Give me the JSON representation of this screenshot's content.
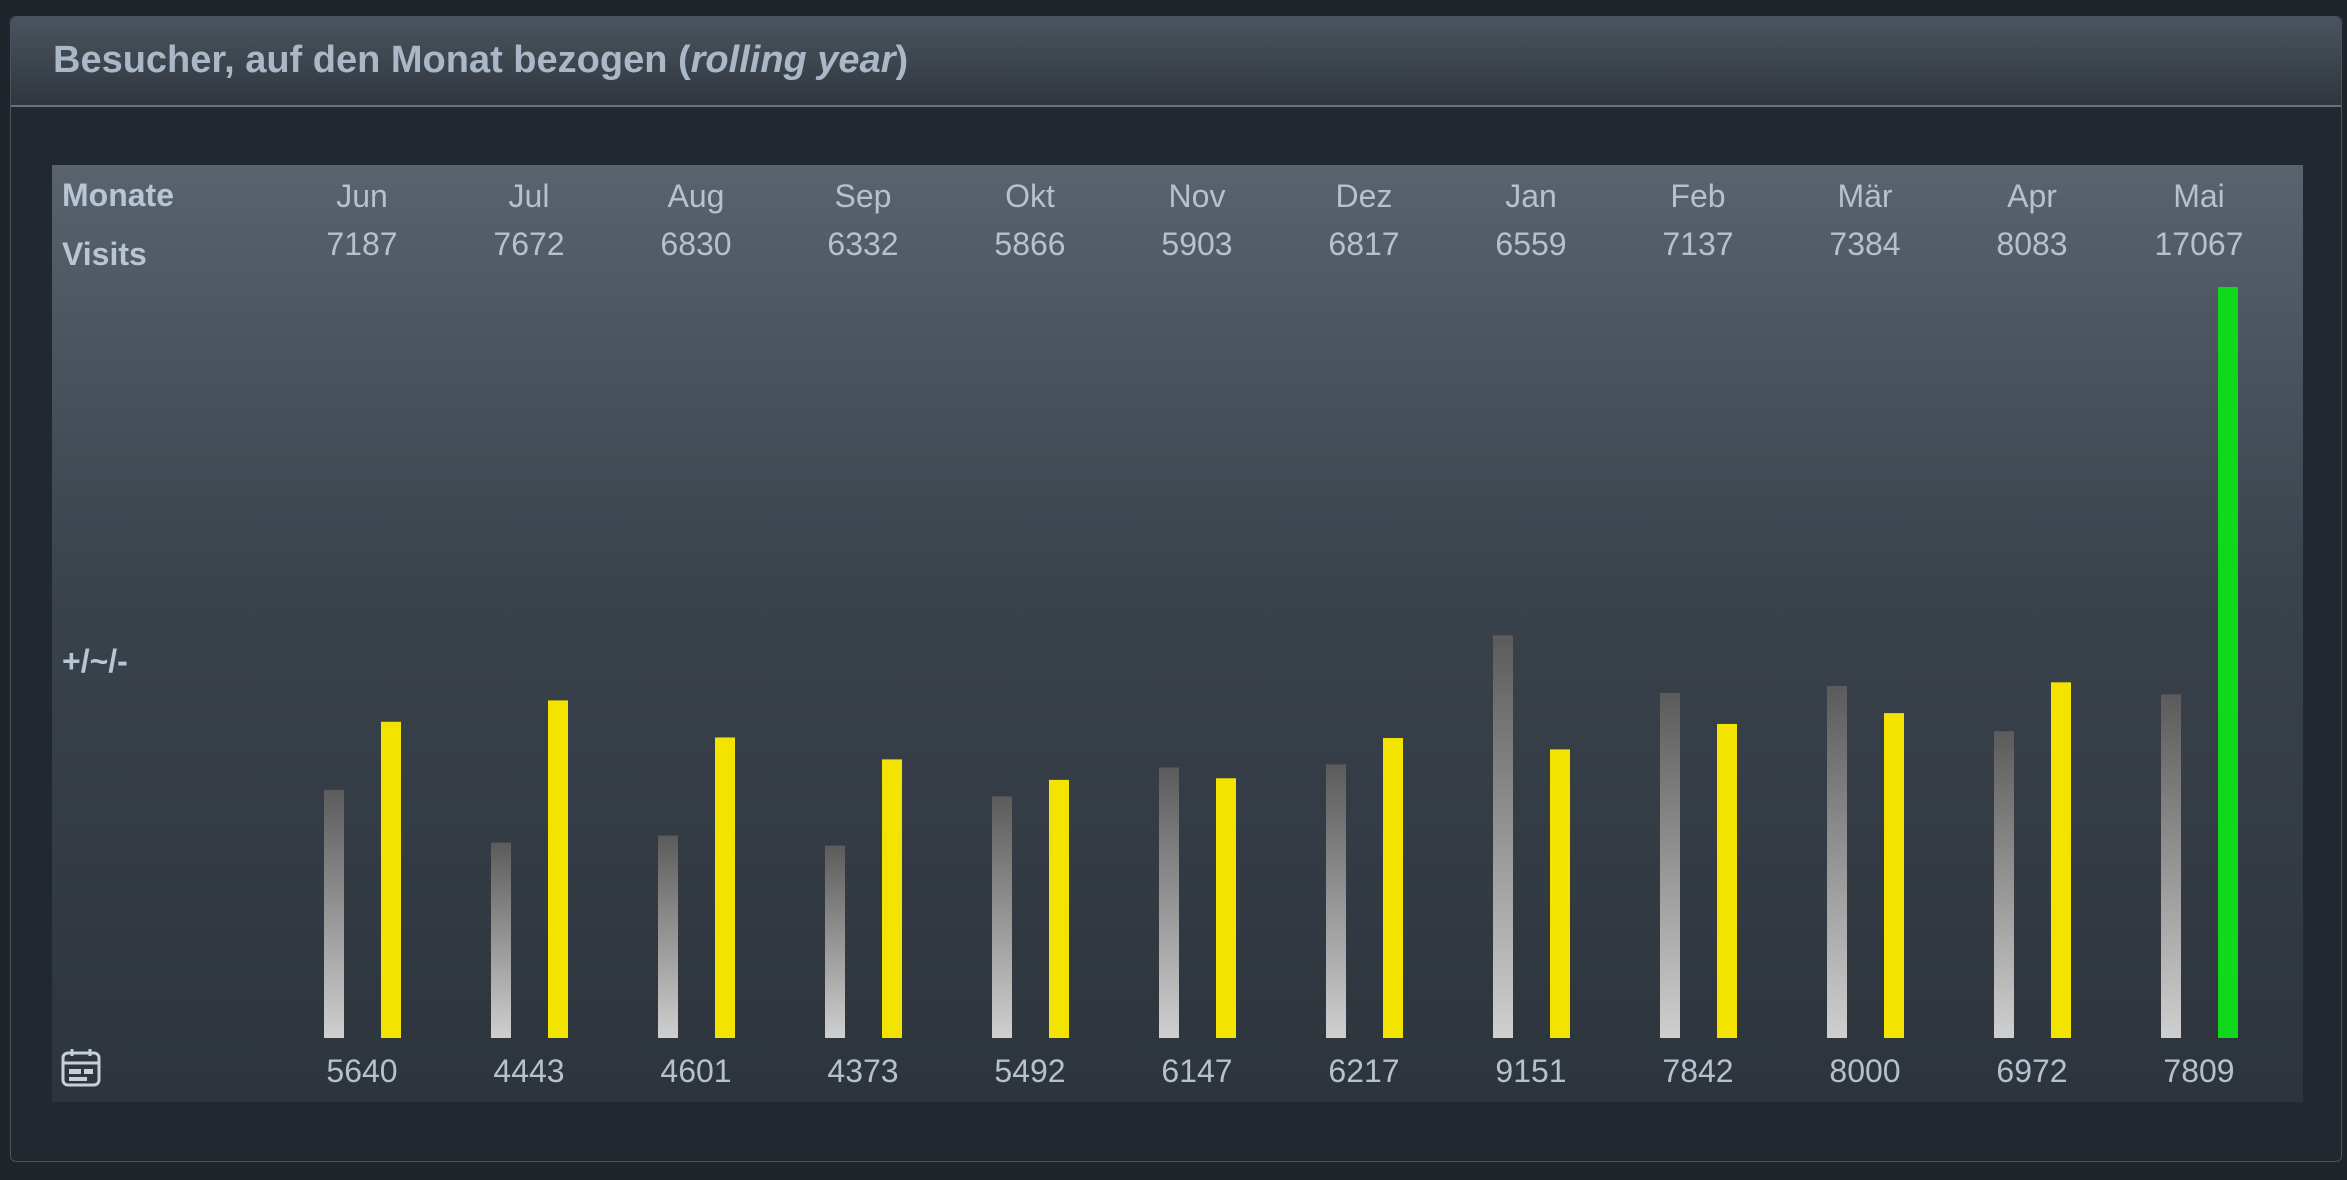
{
  "panel": {
    "title_main": "Besucher, auf den Monat bezogen (",
    "title_italic": "rolling year",
    "title_end": ")"
  },
  "rows": {
    "months_label": "Monate",
    "visits_label": "Visits",
    "diff_label": "+/~/-"
  },
  "icons": {
    "footer_icon": "calendar-card-icon"
  },
  "colors": {
    "text": "#a9b7c6",
    "prev_year_bar": "#b0b0b0",
    "current_bar": "#f2e400",
    "highlight_bar": "#10d81a"
  },
  "chart_data": {
    "type": "bar",
    "categories": [
      "Jun",
      "Jul",
      "Aug",
      "Sep",
      "Okt",
      "Nov",
      "Dez",
      "Jan",
      "Feb",
      "Mär",
      "Apr",
      "Mai"
    ],
    "series": [
      {
        "values": [
          7187,
          7672,
          6830,
          6332,
          5866,
          5903,
          6817,
          6559,
          7137,
          7384,
          8083,
          17067
        ]
      },
      {
        "values": [
          5640,
          4443,
          4601,
          4373,
          5492,
          6147,
          6217,
          9151,
          7842,
          8000,
          6972,
          7809
        ]
      }
    ],
    "ylim": [
      0,
      17067
    ]
  }
}
